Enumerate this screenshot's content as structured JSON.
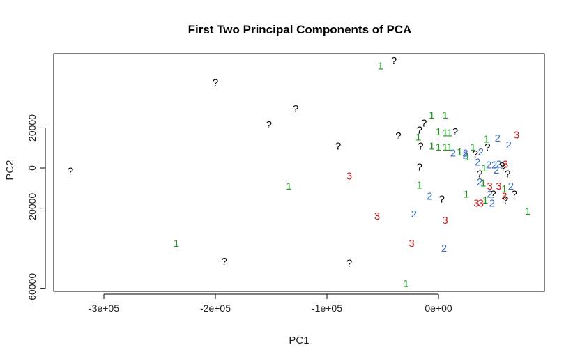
{
  "chart_data": {
    "type": "scatter",
    "title": "First Two Principal Components of PCA",
    "xlabel": "PC1",
    "ylabel": "PC2",
    "xlim": [
      -345000,
      95000
    ],
    "ylim": [
      -61500,
      57000
    ],
    "x_ticks": [
      -300000,
      -200000,
      -100000,
      0
    ],
    "x_tick_labels": [
      "-3e+05",
      "-2e+05",
      "-1e+05",
      "0e+00"
    ],
    "y_ticks": [
      -60000,
      -20000,
      0,
      20000
    ],
    "y_tick_labels": [
      "-60000",
      "-20000",
      "0",
      "20000"
    ],
    "grid": false,
    "legend": "none",
    "colors": {
      "1": "#1f9a1f",
      "2": "#3d6fbf",
      "3": "#c41e1e",
      "?": "#000000"
    },
    "points": [
      {
        "x": -52000,
        "y": 51000,
        "label": "1"
      },
      {
        "x": -40000,
        "y": 53500,
        "label": "?"
      },
      {
        "x": -200000,
        "y": 42500,
        "label": "?"
      },
      {
        "x": -128000,
        "y": 29500,
        "label": "?"
      },
      {
        "x": -152000,
        "y": 21500,
        "label": "?"
      },
      {
        "x": -90000,
        "y": 11000,
        "label": "?"
      },
      {
        "x": -330000,
        "y": -1500,
        "label": "?"
      },
      {
        "x": -134000,
        "y": -9000,
        "label": "1"
      },
      {
        "x": -80000,
        "y": -4000,
        "label": "3"
      },
      {
        "x": -55000,
        "y": -24000,
        "label": "3"
      },
      {
        "x": -235000,
        "y": -37500,
        "label": "1"
      },
      {
        "x": -192000,
        "y": -46500,
        "label": "?"
      },
      {
        "x": -80000,
        "y": -47500,
        "label": "?"
      },
      {
        "x": -29000,
        "y": -57500,
        "label": "1"
      },
      {
        "x": -36000,
        "y": 16000,
        "label": "?"
      },
      {
        "x": -17000,
        "y": 19000,
        "label": "?"
      },
      {
        "x": -18000,
        "y": 15500,
        "label": "1"
      },
      {
        "x": -13000,
        "y": 22500,
        "label": "?"
      },
      {
        "x": -6000,
        "y": 26500,
        "label": "1"
      },
      {
        "x": 6000,
        "y": 26500,
        "label": "1"
      },
      {
        "x": 0,
        "y": 18000,
        "label": "1"
      },
      {
        "x": 6000,
        "y": 17500,
        "label": "1"
      },
      {
        "x": 10000,
        "y": 17500,
        "label": "1"
      },
      {
        "x": 15000,
        "y": 18000,
        "label": "?"
      },
      {
        "x": -16000,
        "y": 11000,
        "label": "?"
      },
      {
        "x": -6000,
        "y": 11000,
        "label": "1"
      },
      {
        "x": 0,
        "y": 10500,
        "label": "1"
      },
      {
        "x": 6000,
        "y": 10500,
        "label": "1"
      },
      {
        "x": 10000,
        "y": 10500,
        "label": "1"
      },
      {
        "x": 19000,
        "y": 8000,
        "label": "1"
      },
      {
        "x": 13000,
        "y": 7500,
        "label": "2"
      },
      {
        "x": 24000,
        "y": 7500,
        "label": "2"
      },
      {
        "x": 31000,
        "y": 10500,
        "label": "1"
      },
      {
        "x": 26000,
        "y": 5500,
        "label": "1"
      },
      {
        "x": 38000,
        "y": 8000,
        "label": "2"
      },
      {
        "x": 24000,
        "y": 6500,
        "label": "2"
      },
      {
        "x": 33000,
        "y": 7000,
        "label": "?"
      },
      {
        "x": 43000,
        "y": 14500,
        "label": "1"
      },
      {
        "x": 44000,
        "y": 10500,
        "label": "?"
      },
      {
        "x": 53000,
        "y": 15000,
        "label": "2"
      },
      {
        "x": 63000,
        "y": 11500,
        "label": "2"
      },
      {
        "x": 70000,
        "y": 16500,
        "label": "3"
      },
      {
        "x": 35000,
        "y": 3000,
        "label": "2"
      },
      {
        "x": 41000,
        "y": 0,
        "label": "1"
      },
      {
        "x": 45000,
        "y": 1500,
        "label": "2"
      },
      {
        "x": 50000,
        "y": 1500,
        "label": "2"
      },
      {
        "x": 54000,
        "y": 2000,
        "label": "2"
      },
      {
        "x": 57000,
        "y": 1000,
        "label": "?"
      },
      {
        "x": 52000,
        "y": -1000,
        "label": "2"
      },
      {
        "x": 60000,
        "y": 2000,
        "label": "3"
      },
      {
        "x": 58000,
        "y": 0,
        "label": "?"
      },
      {
        "x": 62000,
        "y": -3000,
        "label": "?"
      },
      {
        "x": -17000,
        "y": 500,
        "label": "?"
      },
      {
        "x": 37000,
        "y": -3000,
        "label": "?"
      },
      {
        "x": 37000,
        "y": -7000,
        "label": "2"
      },
      {
        "x": 40000,
        "y": -7500,
        "label": "1"
      },
      {
        "x": 46000,
        "y": -9000,
        "label": "3"
      },
      {
        "x": 54000,
        "y": -9000,
        "label": "3"
      },
      {
        "x": 59000,
        "y": -10500,
        "label": "1"
      },
      {
        "x": 65000,
        "y": -9000,
        "label": "2"
      },
      {
        "x": 46000,
        "y": -13000,
        "label": "2"
      },
      {
        "x": 49000,
        "y": -13000,
        "label": "?"
      },
      {
        "x": 59000,
        "y": -14000,
        "label": "3"
      },
      {
        "x": 68000,
        "y": -13000,
        "label": "?"
      },
      {
        "x": 25000,
        "y": -13000,
        "label": "1"
      },
      {
        "x": 34000,
        "y": -17500,
        "label": "3"
      },
      {
        "x": 38000,
        "y": -17500,
        "label": "3"
      },
      {
        "x": 48000,
        "y": -17500,
        "label": "2"
      },
      {
        "x": 60000,
        "y": -16000,
        "label": "?"
      },
      {
        "x": 42000,
        "y": -16000,
        "label": "1"
      },
      {
        "x": -17000,
        "y": -8500,
        "label": "1"
      },
      {
        "x": -8000,
        "y": -14000,
        "label": "2"
      },
      {
        "x": 3000,
        "y": -15500,
        "label": "?"
      },
      {
        "x": -22000,
        "y": -23000,
        "label": "2"
      },
      {
        "x": 6000,
        "y": -26000,
        "label": "3"
      },
      {
        "x": -24000,
        "y": -37500,
        "label": "3"
      },
      {
        "x": 5000,
        "y": -40000,
        "label": "2"
      },
      {
        "x": 80000,
        "y": -21500,
        "label": "1"
      }
    ]
  }
}
